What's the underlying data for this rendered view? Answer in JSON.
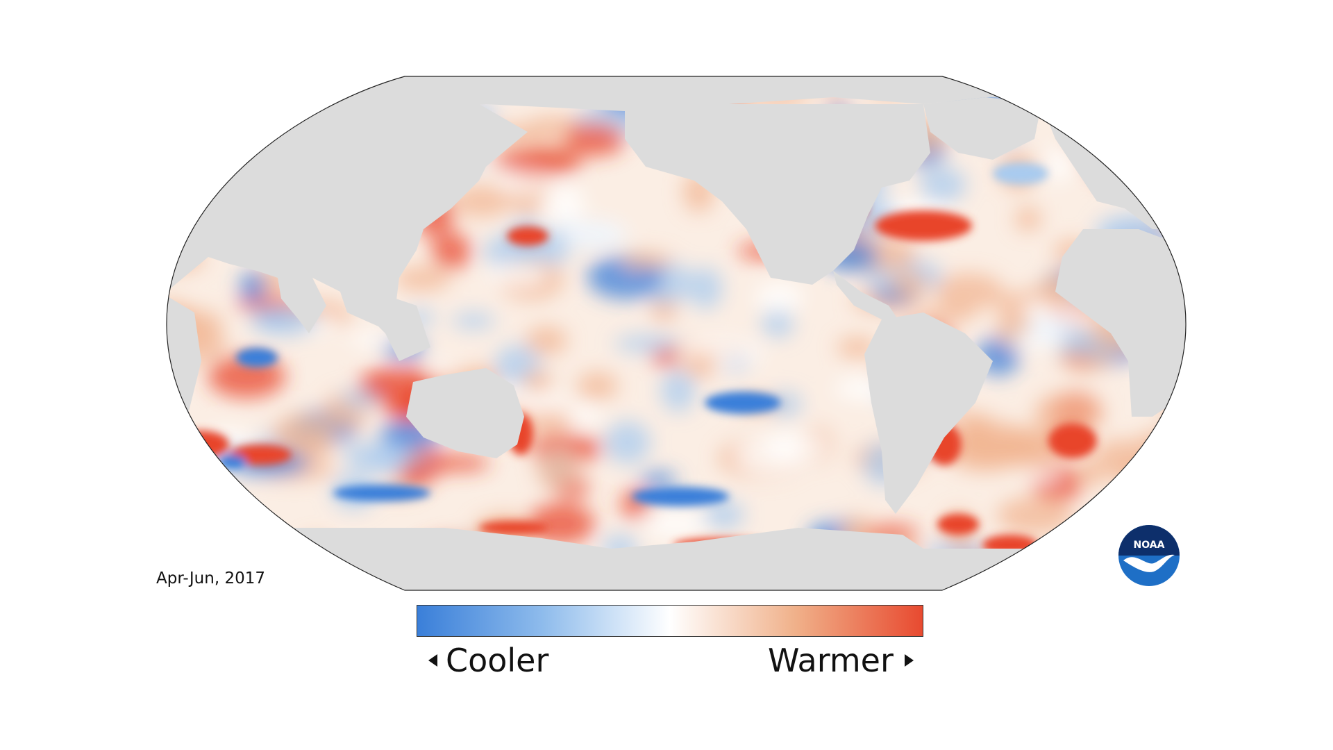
{
  "map": {
    "period_label": "Apr-Jun, 2017",
    "colors": {
      "land": "#dcdcdc",
      "ocean_neutral": "#fbeee4",
      "cool_strong": "#3a7fd9",
      "cool_light": "#a9cbef",
      "warm_light": "#f2b593",
      "warm_strong": "#e8452c",
      "outline": "#222222"
    }
  },
  "legend": {
    "cooler_label": "Cooler",
    "warmer_label": "Warmer",
    "gradient": [
      "#3a7fd9",
      "#8fbcec",
      "#ffffff",
      "#f0b089",
      "#e84a30"
    ]
  },
  "logo": {
    "text": "NOAA",
    "icon": "noaa-logo-icon"
  }
}
